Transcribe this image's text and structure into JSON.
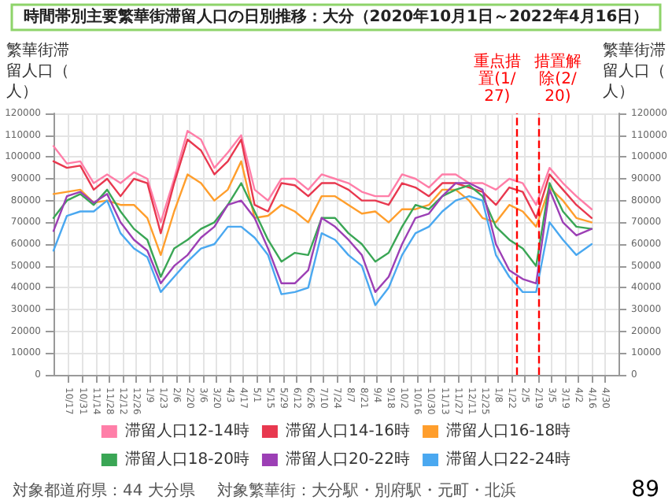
{
  "chart_data": {
    "type": "line",
    "title": "時間帯別主要繁華街滞留人口の日別推移：大分（2020年10月1日～2022年4月16日）",
    "ylabel": "繁華街滞留人口（人）",
    "y2label": "繁華街滞留人口（人）",
    "x": [
      "2020-10-01",
      "2020-10-15",
      "2020-10-29",
      "2020-11-12",
      "2020-11-26",
      "2020-12-10",
      "2020-12-24",
      "2021-01-07",
      "2021-01-21",
      "2021-02-04",
      "2021-02-18",
      "2021-03-04",
      "2021-03-18",
      "2021-04-01",
      "2021-04-15",
      "2021-04-29",
      "2021-05-13",
      "2021-05-27",
      "2021-06-10",
      "2021-06-24",
      "2021-07-08",
      "2021-07-22",
      "2021-08-05",
      "2021-08-19",
      "2021-09-02",
      "2021-09-16",
      "2021-09-30",
      "2021-10-14",
      "2021-10-28",
      "2021-11-11",
      "2021-11-25",
      "2021-12-09",
      "2021-12-23",
      "2022-01-06",
      "2022-01-20",
      "2022-02-03",
      "2022-02-17",
      "2022-03-03",
      "2022-03-17",
      "2022-03-31",
      "2022-04-16"
    ],
    "series": [
      {
        "name": "滞留人口12-14時",
        "color": "#ff7ea8",
        "values": [
          105000,
          97000,
          98000,
          88000,
          92000,
          88000,
          93000,
          90000,
          70000,
          90000,
          112000,
          108000,
          95000,
          102000,
          110000,
          85000,
          80000,
          90000,
          90000,
          85000,
          92000,
          90000,
          88000,
          84000,
          82000,
          82000,
          92000,
          90000,
          86000,
          92000,
          92000,
          88000,
          88000,
          85000,
          90000,
          88000,
          78000,
          95000,
          88000,
          82000,
          76000
        ]
      },
      {
        "name": "滞留人口14-16時",
        "color": "#e8384f",
        "values": [
          98000,
          95000,
          96000,
          85000,
          90000,
          82000,
          90000,
          88000,
          65000,
          88000,
          108000,
          103000,
          92000,
          98000,
          108000,
          78000,
          75000,
          88000,
          87000,
          82000,
          88000,
          88000,
          85000,
          80000,
          80000,
          78000,
          88000,
          86000,
          82000,
          88000,
          88000,
          86000,
          84000,
          78000,
          86000,
          84000,
          72000,
          92000,
          85000,
          78000,
          72000
        ]
      },
      {
        "name": "滞留人口16-18時",
        "color": "#ff9e2c",
        "values": [
          83000,
          84000,
          85000,
          79000,
          80000,
          78000,
          78000,
          72000,
          55000,
          75000,
          92000,
          88000,
          80000,
          85000,
          98000,
          72000,
          73000,
          78000,
          75000,
          70000,
          82000,
          82000,
          78000,
          74000,
          75000,
          70000,
          76000,
          76000,
          78000,
          85000,
          85000,
          80000,
          72000,
          70000,
          78000,
          75000,
          68000,
          86000,
          80000,
          72000,
          70000
        ]
      },
      {
        "name": "滞留人口18-20時",
        "color": "#3aa655",
        "values": [
          72000,
          80000,
          83000,
          78000,
          85000,
          75000,
          67000,
          62000,
          45000,
          58000,
          62000,
          67000,
          70000,
          78000,
          88000,
          75000,
          62000,
          52000,
          56000,
          55000,
          72000,
          72000,
          65000,
          60000,
          52000,
          56000,
          68000,
          78000,
          76000,
          82000,
          85000,
          87000,
          82000,
          68000,
          62000,
          58000,
          50000,
          88000,
          75000,
          68000,
          67000
        ]
      },
      {
        "name": "滞留人口20-22時",
        "color": "#9c3fb5",
        "values": [
          66000,
          82000,
          84000,
          79000,
          83000,
          70000,
          62000,
          57000,
          42000,
          50000,
          55000,
          63000,
          68000,
          78000,
          80000,
          72000,
          58000,
          42000,
          42000,
          48000,
          72000,
          68000,
          62000,
          55000,
          38000,
          45000,
          60000,
          72000,
          74000,
          82000,
          88000,
          88000,
          85000,
          60000,
          48000,
          44000,
          42000,
          85000,
          70000,
          64000,
          67000
        ]
      },
      {
        "name": "滞留人口22-24時",
        "color": "#4aa8f0",
        "values": [
          57000,
          73000,
          75000,
          75000,
          80000,
          65000,
          58000,
          54000,
          38000,
          45000,
          52000,
          58000,
          60000,
          68000,
          68000,
          63000,
          55000,
          37000,
          38000,
          40000,
          65000,
          62000,
          55000,
          50000,
          32000,
          40000,
          55000,
          65000,
          68000,
          75000,
          80000,
          82000,
          80000,
          55000,
          45000,
          38000,
          38000,
          70000,
          62000,
          55000,
          60000
        ]
      }
    ],
    "xlim": [
      "2020-10-01",
      "2022-05-14"
    ],
    "xticks": [
      {
        "value": "2020-10-17",
        "label": "10/17"
      },
      {
        "value": "2020-10-31",
        "label": "10/31"
      },
      {
        "value": "2020-11-14",
        "label": "11/14"
      },
      {
        "value": "2020-11-28",
        "label": "11/28"
      },
      {
        "value": "2020-12-12",
        "label": "12/12"
      },
      {
        "value": "2020-12-26",
        "label": "12/26"
      },
      {
        "value": "2021-01-09",
        "label": "1/9"
      },
      {
        "value": "2021-01-23",
        "label": "1/23"
      },
      {
        "value": "2021-02-06",
        "label": "2/6"
      },
      {
        "value": "2021-02-20",
        "label": "2/20"
      },
      {
        "value": "2021-03-06",
        "label": "3/6"
      },
      {
        "value": "2021-03-20",
        "label": "3/20"
      },
      {
        "value": "2021-04-03",
        "label": "4/3"
      },
      {
        "value": "2021-04-17",
        "label": "4/17"
      },
      {
        "value": "2021-05-01",
        "label": "5/1"
      },
      {
        "value": "2021-05-15",
        "label": "5/15"
      },
      {
        "value": "2021-05-29",
        "label": "5/29"
      },
      {
        "value": "2021-06-12",
        "label": "6/12"
      },
      {
        "value": "2021-06-26",
        "label": "6/26"
      },
      {
        "value": "2021-07-10",
        "label": "7/10"
      },
      {
        "value": "2021-07-24",
        "label": "7/24"
      },
      {
        "value": "2021-08-07",
        "label": "8/7"
      },
      {
        "value": "2021-08-21",
        "label": "8/21"
      },
      {
        "value": "2021-09-04",
        "label": "9/4"
      },
      {
        "value": "2021-09-18",
        "label": "9/18"
      },
      {
        "value": "2021-10-02",
        "label": "10/2"
      },
      {
        "value": "2021-10-16",
        "label": "10/16"
      },
      {
        "value": "2021-10-30",
        "label": "10/30"
      },
      {
        "value": "2021-11-13",
        "label": "11/13"
      },
      {
        "value": "2021-11-27",
        "label": "11/27"
      },
      {
        "value": "2021-12-11",
        "label": "12/11"
      },
      {
        "value": "2021-12-25",
        "label": "12/25"
      },
      {
        "value": "2022-01-08",
        "label": "1/8"
      },
      {
        "value": "2022-01-22",
        "label": "1/22"
      },
      {
        "value": "2022-02-05",
        "label": "2/5"
      },
      {
        "value": "2022-02-19",
        "label": "2/19"
      },
      {
        "value": "2022-03-05",
        "label": "3/5"
      },
      {
        "value": "2022-03-19",
        "label": "3/19"
      },
      {
        "value": "2022-04-02",
        "label": "4/2"
      },
      {
        "value": "2022-04-16",
        "label": "4/16"
      },
      {
        "value": "2022-04-30",
        "label": "4/30"
      }
    ],
    "ylim": [
      0,
      120000
    ],
    "yticks": [
      0,
      10000,
      20000,
      30000,
      40000,
      50000,
      60000,
      70000,
      80000,
      90000,
      100000,
      110000,
      120000
    ],
    "y2lim": [
      0,
      120000
    ],
    "y2ticks": [
      0,
      10000,
      20000,
      30000,
      40000,
      50000,
      60000,
      70000,
      80000,
      90000,
      100000,
      110000,
      120000
    ],
    "ref_lines": [
      {
        "axis": "x",
        "value": "2022-01-27",
        "label": "重点措置(1/27)",
        "color": "#ff0000",
        "line_style": "dashed"
      },
      {
        "axis": "x",
        "value": "2022-02-20",
        "label": "措置解除(2/20)",
        "color": "#ff0000",
        "line_style": "dashed"
      }
    ],
    "grid": true,
    "legend": "bottom",
    "annotations": [
      "対象都道府県：44 大分県",
      "対象繁華街：大分駅・別府駅・元町・北浜",
      "89"
    ]
  }
}
